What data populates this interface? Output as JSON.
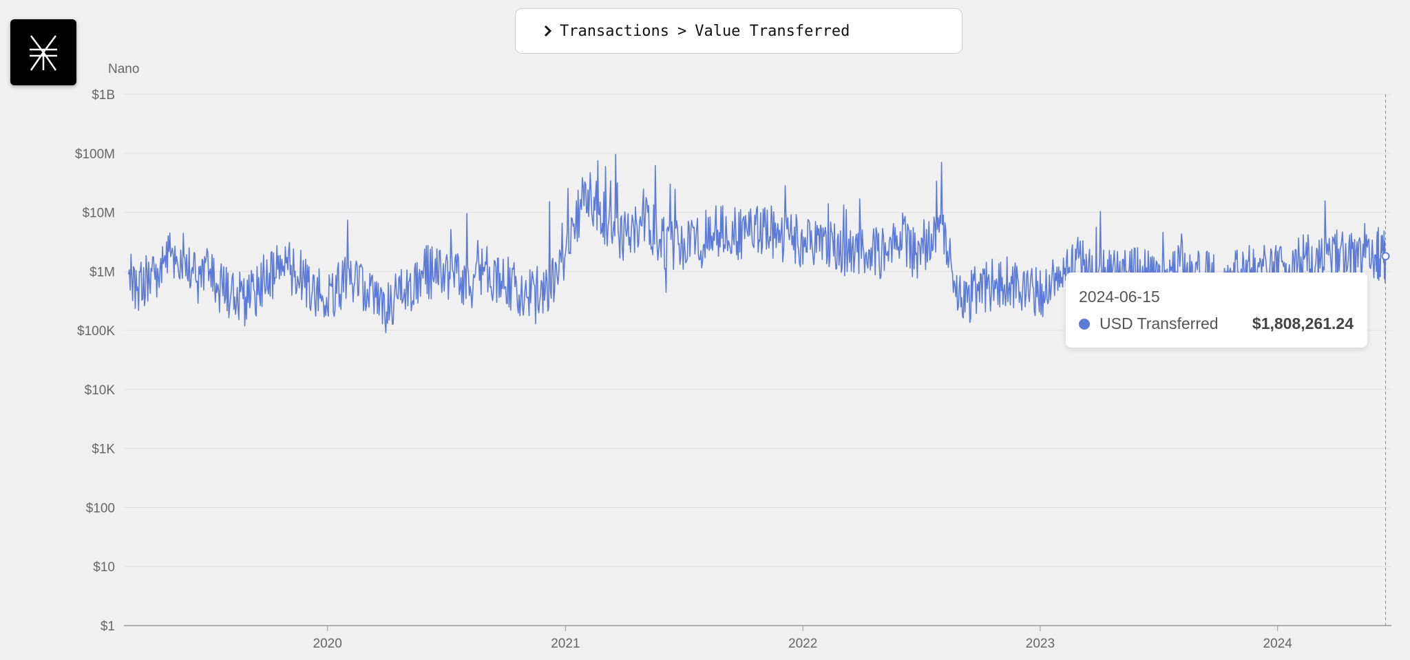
{
  "header": {
    "crumb_1": "Transactions",
    "crumb_sep": ">",
    "crumb_2": "Value Transferred"
  },
  "logo": {
    "icon": "nano-logo-icon"
  },
  "chart_data": {
    "type": "line",
    "title": "Nano",
    "y_scale": "log",
    "ylim": [
      1,
      1000000000
    ],
    "y_ticks": [
      {
        "value": 1,
        "label": "$1"
      },
      {
        "value": 10,
        "label": "$10"
      },
      {
        "value": 100,
        "label": "$100"
      },
      {
        "value": 1000,
        "label": "$1K"
      },
      {
        "value": 10000,
        "label": "$10K"
      },
      {
        "value": 100000,
        "label": "$100K"
      },
      {
        "value": 1000000,
        "label": "$1M"
      },
      {
        "value": 10000000,
        "label": "$10M"
      },
      {
        "value": 100000000,
        "label": "$100M"
      },
      {
        "value": 1000000000,
        "label": "$1B"
      }
    ],
    "xlim": [
      "2019-02-22",
      "2024-06-24"
    ],
    "x_ticks": [
      {
        "date": "2020-01-01",
        "label": "2020"
      },
      {
        "date": "2021-01-01",
        "label": "2021"
      },
      {
        "date": "2022-01-01",
        "label": "2022"
      },
      {
        "date": "2023-01-01",
        "label": "2023"
      },
      {
        "date": "2024-01-01",
        "label": "2024"
      }
    ],
    "grid": true,
    "series_color": "#5c7bd9",
    "series": [
      {
        "name": "USD Transferred",
        "x": [
          "2019-03-01",
          "2019-04-01",
          "2019-05-01",
          "2019-06-01",
          "2019-07-01",
          "2019-08-01",
          "2019-09-01",
          "2019-10-01",
          "2019-11-01",
          "2019-12-01",
          "2020-01-01",
          "2020-02-01",
          "2020-03-01",
          "2020-04-01",
          "2020-05-01",
          "2020-06-01",
          "2020-07-01",
          "2020-08-01",
          "2020-09-01",
          "2020-10-01",
          "2020-11-01",
          "2020-12-01",
          "2021-01-01",
          "2021-02-01",
          "2021-03-01",
          "2021-04-01",
          "2021-05-01",
          "2021-06-01",
          "2021-07-01",
          "2021-08-01",
          "2021-09-01",
          "2021-10-01",
          "2021-11-01",
          "2021-12-01",
          "2022-01-01",
          "2022-02-01",
          "2022-03-01",
          "2022-04-01",
          "2022-05-01",
          "2022-06-01",
          "2022-07-01",
          "2022-08-01",
          "2022-09-01",
          "2022-10-01",
          "2022-11-01",
          "2022-12-01",
          "2023-01-01",
          "2023-02-01",
          "2023-03-01",
          "2023-04-01",
          "2023-05-01",
          "2023-06-01",
          "2023-07-01",
          "2023-08-01",
          "2023-09-01",
          "2023-10-01",
          "2023-11-01",
          "2023-12-01",
          "2024-01-01",
          "2024-02-01",
          "2024-03-01",
          "2024-04-01",
          "2024-05-01",
          "2024-06-01",
          "2024-06-15"
        ],
        "y": [
          400000,
          800000,
          2000000,
          1200000,
          900000,
          400000,
          350000,
          800000,
          1500000,
          600000,
          300000,
          800000,
          400000,
          250000,
          500000,
          1000000,
          800000,
          600000,
          1000000,
          700000,
          400000,
          500000,
          1500000,
          25000000,
          8000000,
          4000000,
          8000000,
          3000000,
          2500000,
          4000000,
          5000000,
          4000000,
          5000000,
          4000000,
          3000000,
          3500000,
          2000000,
          2500000,
          2000000,
          4000000,
          1500000,
          9000000,
          300000,
          500000,
          700000,
          600000,
          400000,
          700000,
          1500000,
          800000,
          1000000,
          900000,
          700000,
          1000000,
          900000,
          700000,
          1000000,
          1000000,
          1000000,
          1500000,
          1500000,
          1800000,
          1500000,
          2000000,
          1808261.24
        ]
      }
    ],
    "highlight": {
      "date": "2024-06-15",
      "series": "USD Transferred",
      "value": 1808261.24,
      "value_label": "$1,808,261.24"
    }
  }
}
